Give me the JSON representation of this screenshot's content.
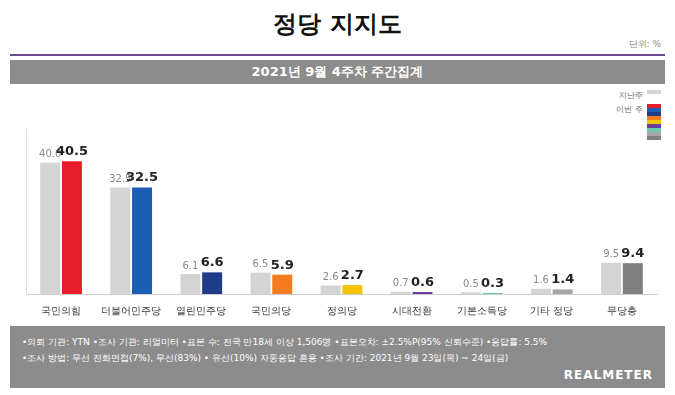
{
  "chart_data": {
    "type": "bar",
    "title": "정당 지지도",
    "unit": "단위: %",
    "subtitle": "2021년 9월 4주차 주간집계",
    "categories": [
      "국민의힘",
      "더불어민주당",
      "열린민주당",
      "국민의당",
      "정의당",
      "시대전환",
      "기본소득당",
      "기타 정당",
      "무당층"
    ],
    "series": [
      {
        "name": "지난주",
        "color": "#d4d4d4",
        "values": [
          40.0,
          32.5,
          6.1,
          6.5,
          2.6,
          0.7,
          0.5,
          1.6,
          9.5
        ],
        "value_labels": [
          "40.0",
          "32.5",
          "6.1",
          "6.5",
          "2.6",
          "0.7",
          "0.5",
          "1.6",
          "9.5"
        ]
      },
      {
        "name": "이번 주",
        "colors": [
          "#e61e2b",
          "#1a5fb4",
          "#1f3c88",
          "#f47c20",
          "#f5c400",
          "#6a3d9a",
          "#6cc8b0",
          "#a6a6a6",
          "#808080"
        ],
        "values": [
          40.5,
          32.5,
          6.6,
          5.9,
          2.7,
          0.6,
          0.3,
          1.4,
          9.4
        ],
        "value_labels": [
          "40.5",
          "32.5",
          "6.6",
          "5.9",
          "2.7",
          "0.6",
          "0.3",
          "1.4",
          "9.4"
        ]
      }
    ],
    "ylim": [
      0,
      50
    ],
    "grid": false,
    "legend": "top-right",
    "data_labels": true,
    "tick_labels": "x",
    "notes": [
      "•의뢰 기관: YTN •조사 기관: 리얼미터 •표본 수: 전국 만18세 이상 1,506명 •표본오차: ±2.5%P(95% 신뢰수준) •응답률: 5.5%",
      "•조사 방법: 무선 전화면접(7%), 무선(83%) • 유선(10%) 자동응답 혼용 •조사 기간: 2021년 9월 23일(목) ~ 24일(금)"
    ],
    "source": "REALMETER"
  }
}
